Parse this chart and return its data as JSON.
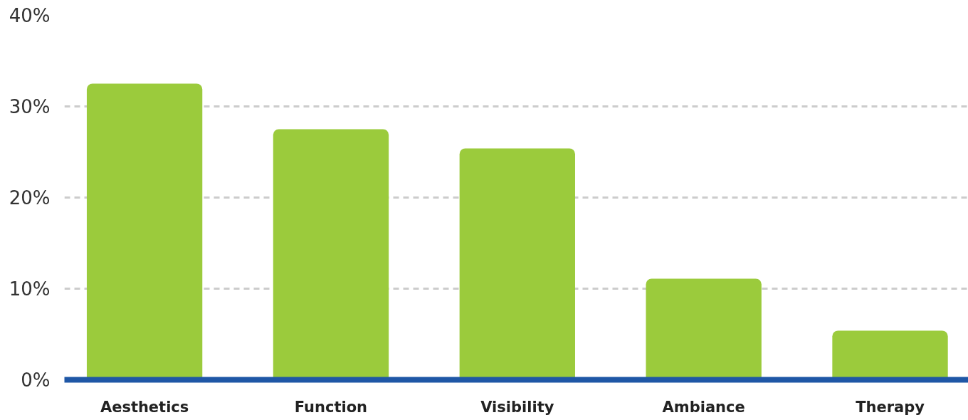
{
  "chart_data": {
    "type": "bar",
    "categories": [
      "Aesthetics",
      "Function",
      "Visibility",
      "Ambiance",
      "Therapy"
    ],
    "values": [
      32.5,
      27.5,
      25.4,
      11.1,
      5.4
    ],
    "color": "#9bcb3c",
    "ylim": [
      0,
      40
    ],
    "yticks": [
      {
        "value": 0,
        "label": "0%"
      },
      {
        "value": 10,
        "label": "10%"
      },
      {
        "value": 20,
        "label": "20%"
      },
      {
        "value": 30,
        "label": "30%"
      },
      {
        "value": 40,
        "label": "40%"
      }
    ],
    "grid": "y"
  }
}
